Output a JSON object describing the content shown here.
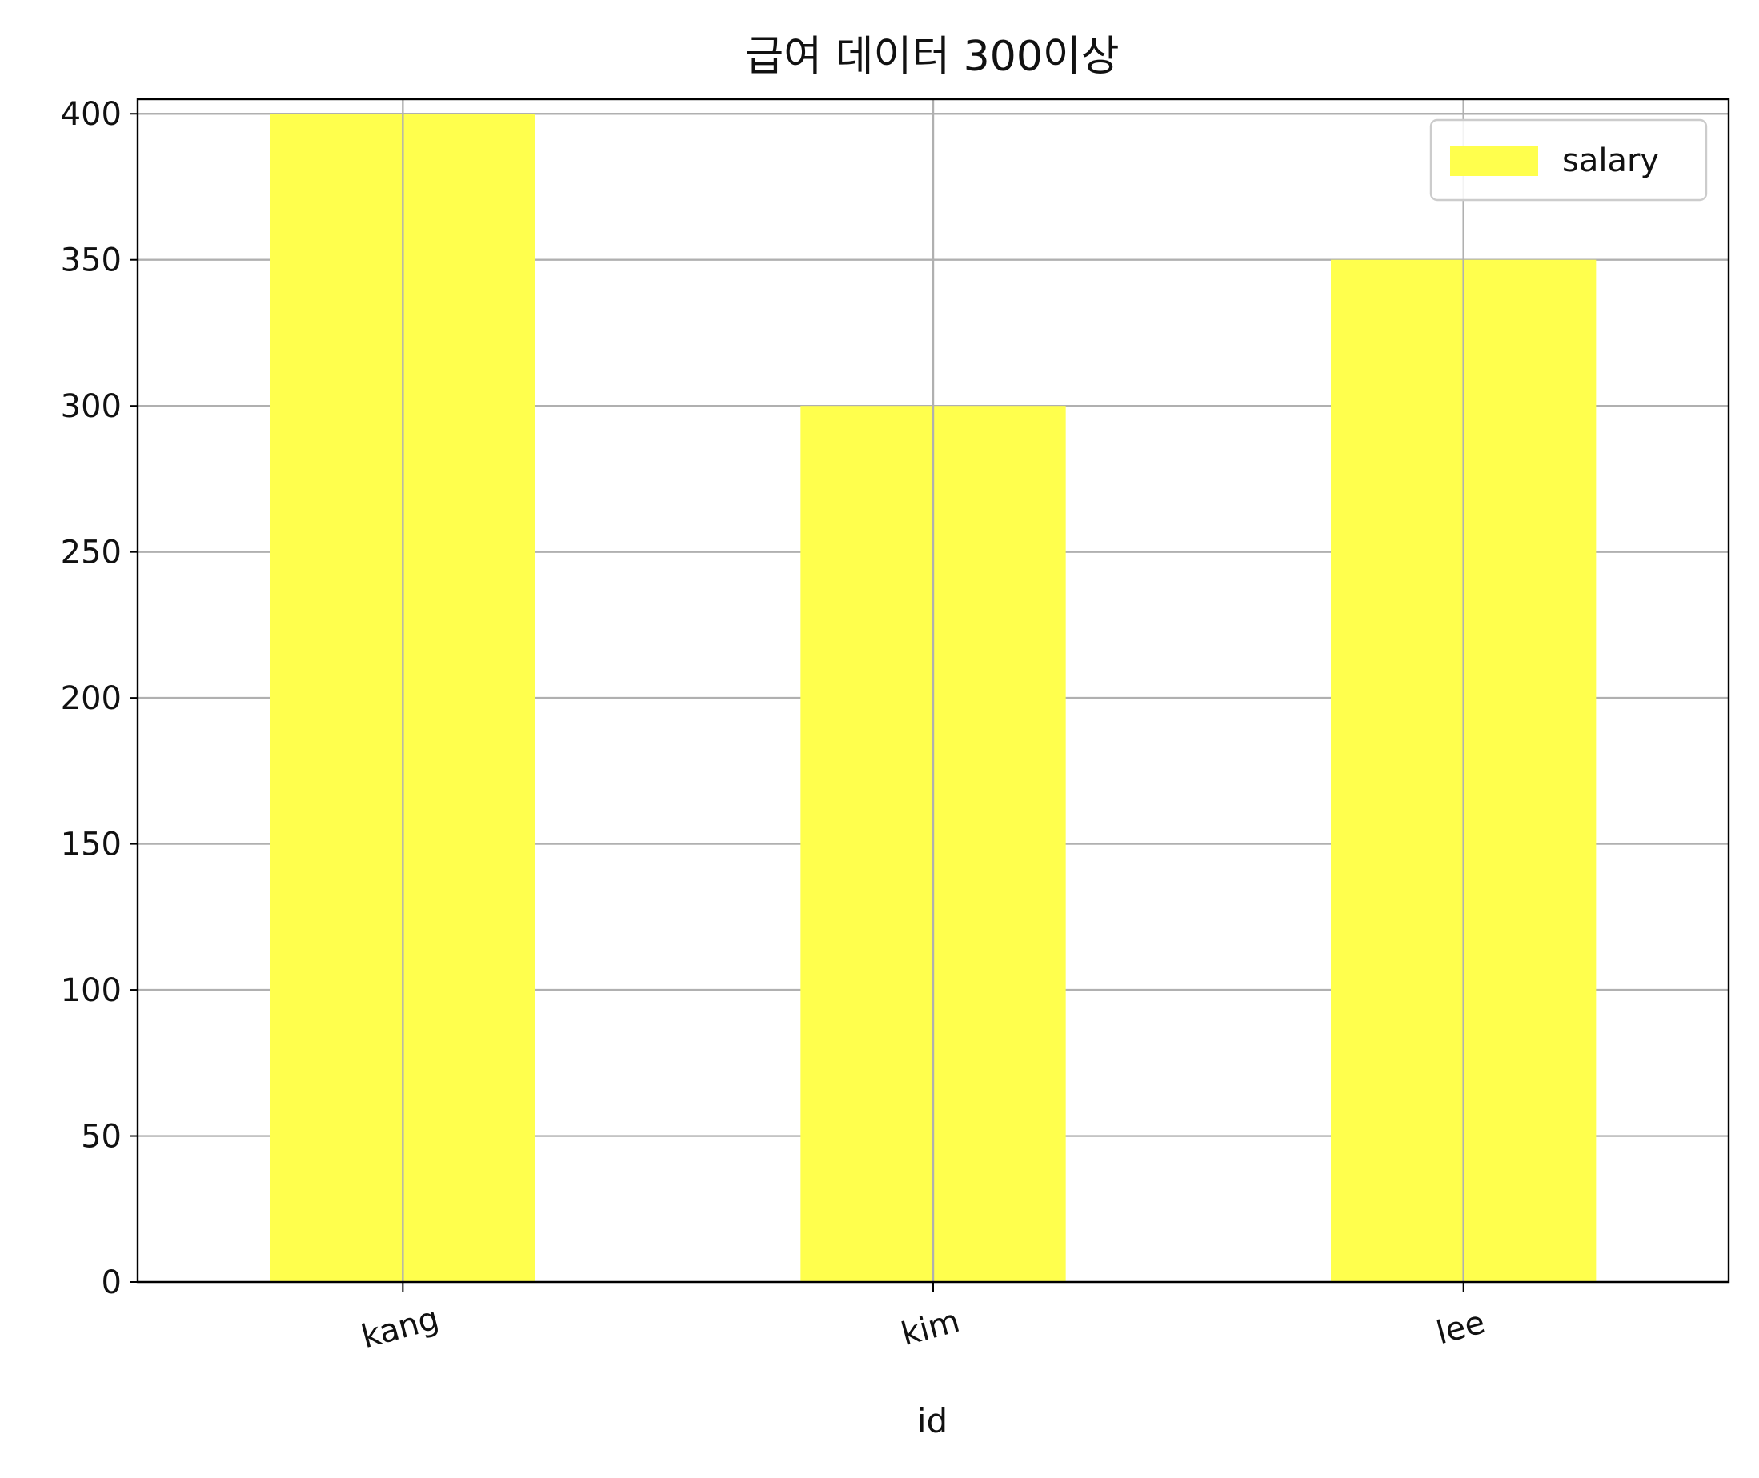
{
  "chart_data": {
    "type": "bar",
    "title": "급여 데이터 300이상",
    "xlabel": "id",
    "ylabel": "",
    "categories": [
      "kang",
      "kim",
      "lee"
    ],
    "series": [
      {
        "name": "salary",
        "values": [
          400,
          300,
          350
        ],
        "color": "#ffff4d"
      }
    ],
    "ylim": [
      0,
      405
    ],
    "yticks": [
      0,
      50,
      100,
      150,
      200,
      250,
      300,
      350,
      400
    ],
    "ytick_labels": [
      "0",
      "50",
      "100",
      "150",
      "200",
      "250",
      "300",
      "350",
      "400"
    ],
    "xtick_rotation_deg": -15,
    "grid": true,
    "legend": {
      "position": "top-right",
      "entries": [
        "salary"
      ]
    }
  }
}
